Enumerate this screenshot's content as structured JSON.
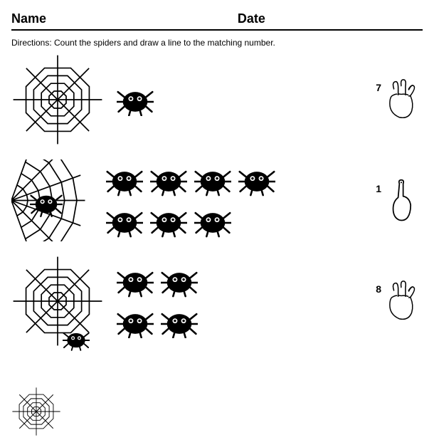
{
  "header": {
    "name_label": "Name",
    "date_label": "Date"
  },
  "directions": "Directions: Count the spiders and draw a line to the matching number.",
  "colors": {
    "ink": "#000000",
    "bg": "#ffffff"
  },
  "rows": [
    {
      "web": {
        "type": "full",
        "size": 130
      },
      "spider_count": 1,
      "spider_grid": "cols2",
      "spider_size": 52,
      "answer_number": "7",
      "hand": "three"
    },
    {
      "web": {
        "type": "corner",
        "size": 115,
        "extra_spider_at": "center"
      },
      "spider_count": 7,
      "spider_grid": "cols4",
      "spider_size": 52,
      "answer_number": "1",
      "hand": "one"
    },
    {
      "web": {
        "type": "full",
        "size": 130,
        "extra_spider_at": "bottom"
      },
      "spider_count": 4,
      "spider_grid": "cols2",
      "spider_size": 52,
      "answer_number": "8",
      "hand": "three"
    }
  ],
  "partial_web": {
    "type": "full",
    "size": 70
  }
}
